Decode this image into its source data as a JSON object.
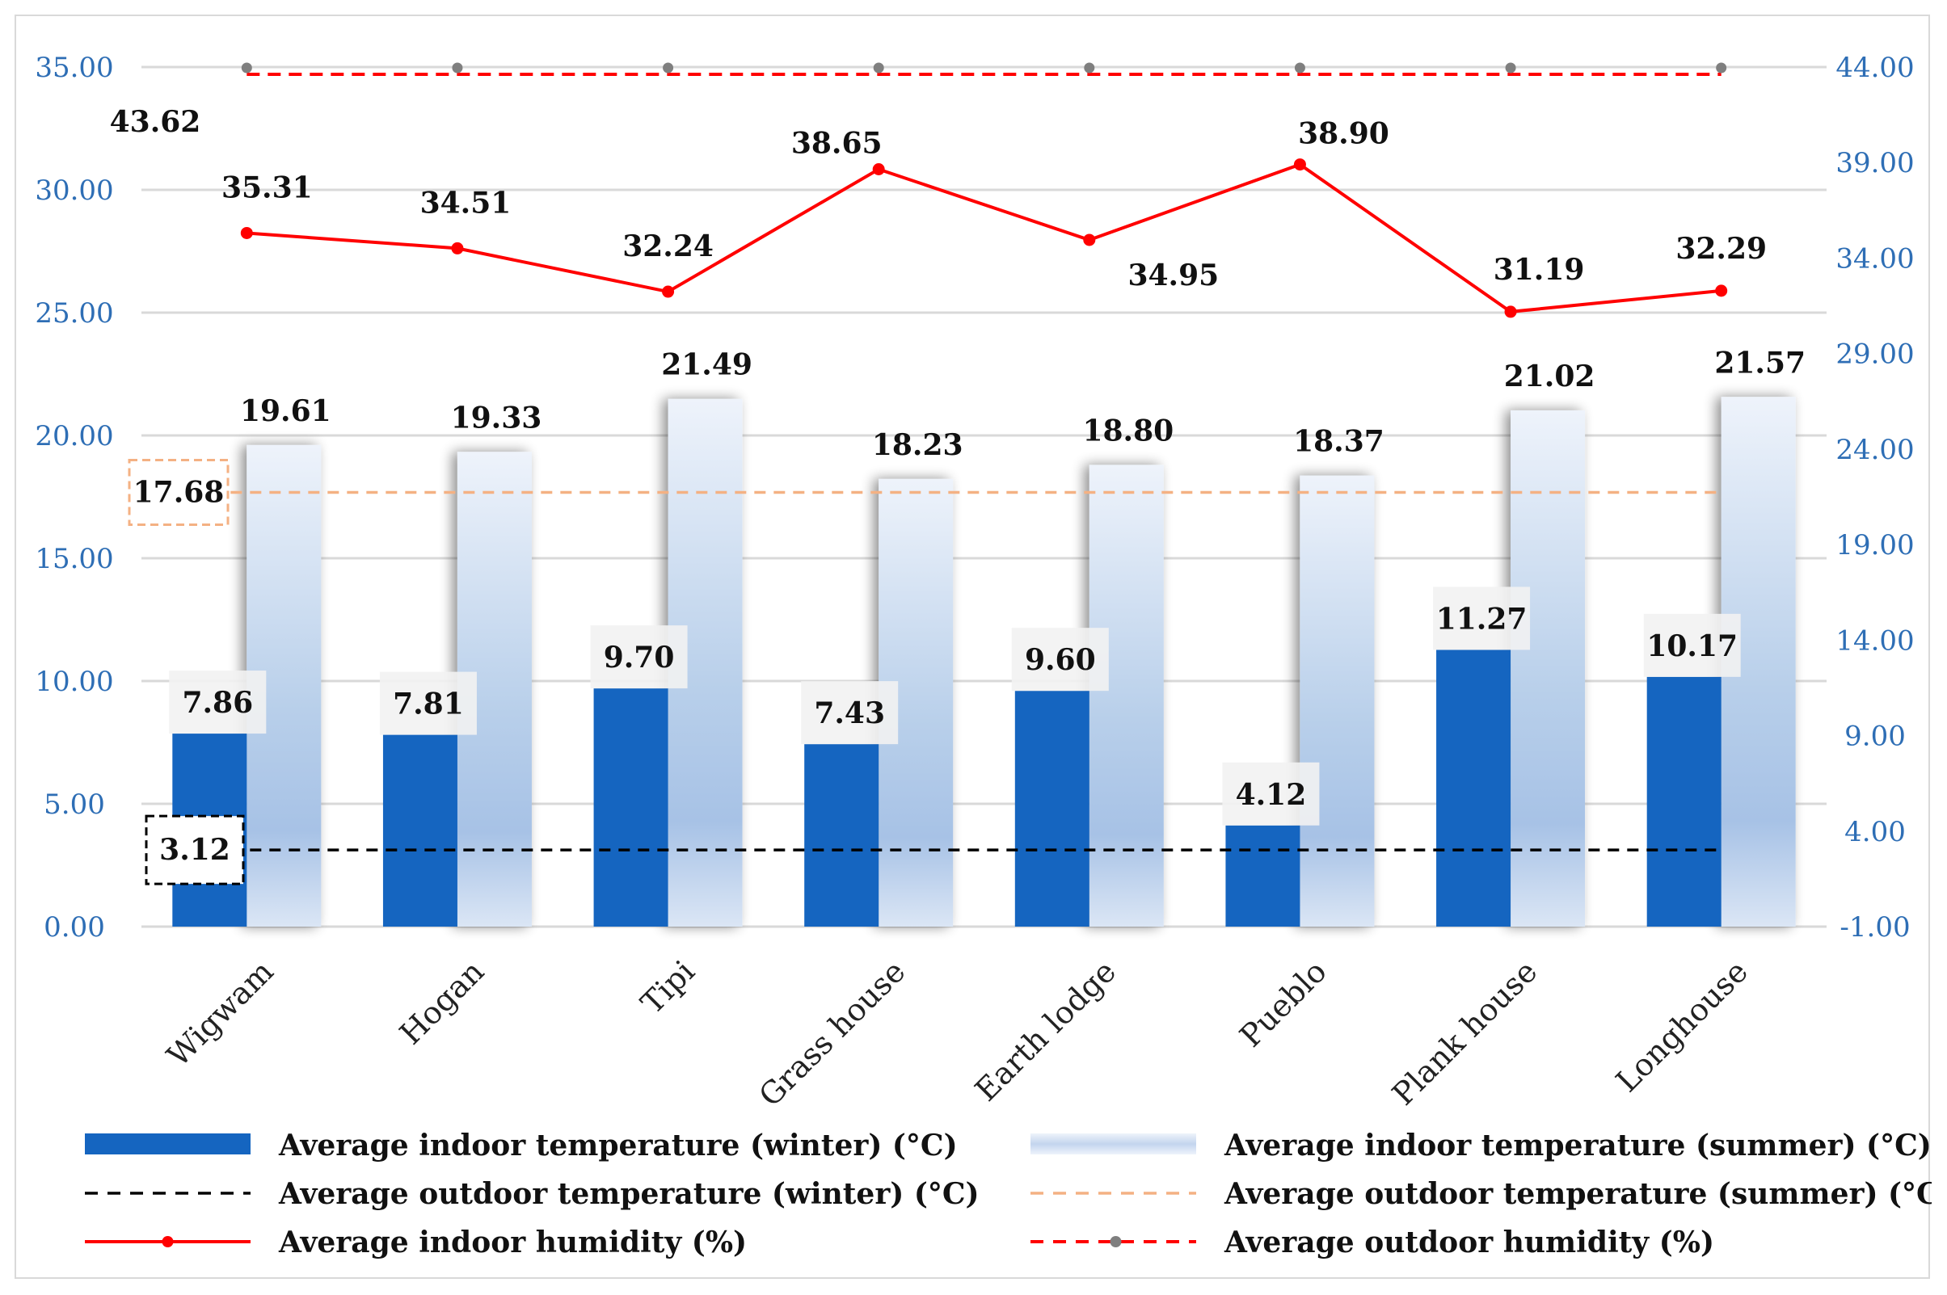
{
  "chart_data": {
    "type": "bar",
    "categories": [
      "Wigwam",
      "Hogan",
      "Tipi",
      "Grass house",
      "Earth lodge",
      "Pueblo",
      "Plank house",
      "Longhouse"
    ],
    "y_left": {
      "range": [
        0,
        35
      ],
      "ticks": [
        "0.00",
        "5.00",
        "10.00",
        "15.00",
        "20.00",
        "25.00",
        "30.00",
        "35.00"
      ]
    },
    "y_right": {
      "range": [
        -1,
        44
      ],
      "ticks": [
        "-1.00",
        "4.00",
        "9.00",
        "14.00",
        "19.00",
        "24.00",
        "29.00",
        "34.00",
        "39.00",
        "44.00"
      ]
    },
    "grid": true,
    "legend_position": "bottom",
    "series": [
      {
        "name": "Average indoor temperature (winter) (°C)",
        "kind": "bar",
        "axis": "left",
        "color": "#1565c0",
        "values": [
          7.86,
          7.81,
          9.7,
          7.43,
          9.6,
          4.12,
          11.27,
          10.17
        ],
        "labels": [
          "7.86",
          "7.81",
          "9.70",
          "7.43",
          "9.60",
          "4.12",
          "11.27",
          "10.17"
        ]
      },
      {
        "name": "Average indoor temperature (summer) (°C)",
        "kind": "bar",
        "axis": "left",
        "color": "#dbe6f5",
        "values": [
          19.61,
          19.33,
          21.49,
          18.23,
          18.8,
          18.37,
          21.02,
          21.57
        ],
        "labels": [
          "19.61",
          "19.33",
          "21.49",
          "18.23",
          "18.80",
          "18.37",
          "21.02",
          "21.57"
        ]
      },
      {
        "name": "Average outdoor temperature (winter) (°C)",
        "kind": "dashed-line",
        "axis": "left",
        "color": "#000000",
        "value": 3.12,
        "label": "3.12"
      },
      {
        "name": "Average outdoor temperature (summer) (°C)",
        "kind": "dashed-line",
        "axis": "left",
        "color": "#f4b183",
        "value": 17.68,
        "label": "17.68"
      },
      {
        "name": "Average indoor humidity (%)",
        "kind": "line",
        "axis": "right",
        "color": "#ff0000",
        "values": [
          35.31,
          34.51,
          32.24,
          38.65,
          34.95,
          38.9,
          31.19,
          32.29
        ],
        "labels": [
          "35.31",
          "34.51",
          "32.24",
          "38.65",
          "34.95",
          "38.90",
          "31.19",
          "32.29"
        ]
      },
      {
        "name": "Average outdoor humidity (%)",
        "kind": "dashed-line",
        "axis": "right",
        "color": "#ff0000",
        "marker_color": "#7f7f7f",
        "value": 43.62,
        "label": "43.62"
      }
    ]
  }
}
